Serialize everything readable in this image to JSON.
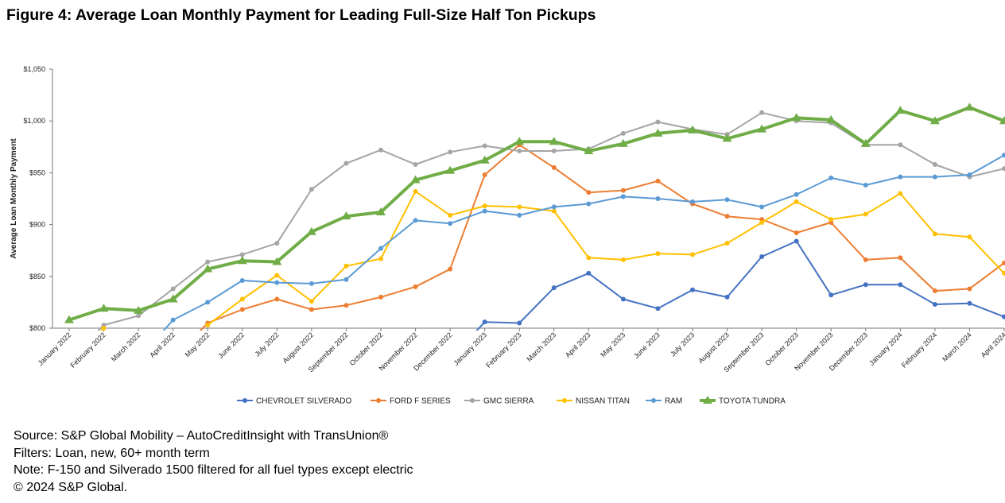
{
  "figure": {
    "title": "Figure 4: Average Loan Monthly Payment for Leading Full-Size Half Ton Pickups"
  },
  "notes": {
    "source": "Source: S&P Global Mobility – AutoCreditInsight with TransUnion®",
    "filters": "Filters: Loan, new, 60+ month term",
    "note": "Note: F-150 and Silverado 1500 filtered for all fuel types except electric",
    "copyright": "© 2024 S&P Global."
  },
  "chart_data": {
    "type": "line",
    "title": "Average Loan Monthly Payment for Leading Full-Size Half Ton Pickups",
    "xlabel": "",
    "ylabel": "Average Loan Monthly Payment",
    "ylim": [
      800,
      1050
    ],
    "yticks": [
      800,
      850,
      900,
      950,
      1000,
      1050
    ],
    "ytick_labels": [
      "$800",
      "$850",
      "$900",
      "$950",
      "$1,000",
      "$1,050"
    ],
    "grid": false,
    "legend_position": "bottom",
    "categories": [
      "January 2022",
      "February 2022",
      "March 2022",
      "April 2022",
      "May 2022",
      "June 2022",
      "July 2022",
      "August 2022",
      "September 2022",
      "October 2022",
      "November 2022",
      "December 2022",
      "January 2023",
      "February 2023",
      "March 2023",
      "April 2023",
      "May 2023",
      "June 2023",
      "July 2023",
      "August 2023",
      "September 2023",
      "October 2023",
      "November 2023",
      "December 2023",
      "January 2024",
      "February 2024",
      "March 2024",
      "April 2024"
    ],
    "series": [
      {
        "name": "CHEVROLET SILVERADO",
        "color": "#4472C4",
        "values": [
          null,
          null,
          null,
          null,
          null,
          null,
          null,
          null,
          null,
          null,
          null,
          null,
          806,
          805,
          839,
          853,
          828,
          819,
          837,
          830,
          869,
          884,
          832,
          842,
          842,
          823,
          824,
          811
        ]
      },
      {
        "name": "FORD F SERIES",
        "color": "#ED7D31",
        "values": [
          null,
          null,
          null,
          null,
          805,
          818,
          828,
          818,
          822,
          830,
          840,
          857,
          948,
          977,
          955,
          931,
          933,
          942,
          920,
          908,
          905,
          892,
          902,
          866,
          868,
          836,
          838,
          863
        ]
      },
      {
        "name": "GMC SIERRA",
        "color": "#A5A5A5",
        "values": [
          null,
          803,
          812,
          838,
          864,
          871,
          882,
          934,
          959,
          972,
          958,
          970,
          976,
          971,
          971,
          973,
          988,
          999,
          992,
          987,
          1008,
          1000,
          998,
          977,
          977,
          958,
          946,
          954
        ]
      },
      {
        "name": "NISSAN TITAN",
        "color": "#FFC000",
        "values": [
          null,
          800,
          null,
          null,
          803,
          828,
          851,
          826,
          860,
          867,
          932,
          909,
          918,
          917,
          913,
          868,
          866,
          872,
          871,
          882,
          902,
          922,
          905,
          910,
          930,
          891,
          888,
          853
        ]
      },
      {
        "name": "RAM",
        "color": "#5B9BD5",
        "values": [
          null,
          null,
          null,
          808,
          825,
          846,
          844,
          843,
          847,
          877,
          904,
          901,
          913,
          909,
          917,
          920,
          927,
          925,
          922,
          924,
          917,
          929,
          945,
          938,
          946,
          946,
          948,
          967
        ]
      },
      {
        "name": "TOYOTA TUNDRA",
        "color": "#70AD47",
        "values": [
          808,
          819,
          817,
          828,
          857,
          865,
          864,
          893,
          908,
          912,
          943,
          952,
          962,
          980,
          980,
          971,
          978,
          988,
          991,
          983,
          992,
          1003,
          1001,
          978,
          1010,
          1000,
          1013,
          1000
        ]
      }
    ]
  }
}
